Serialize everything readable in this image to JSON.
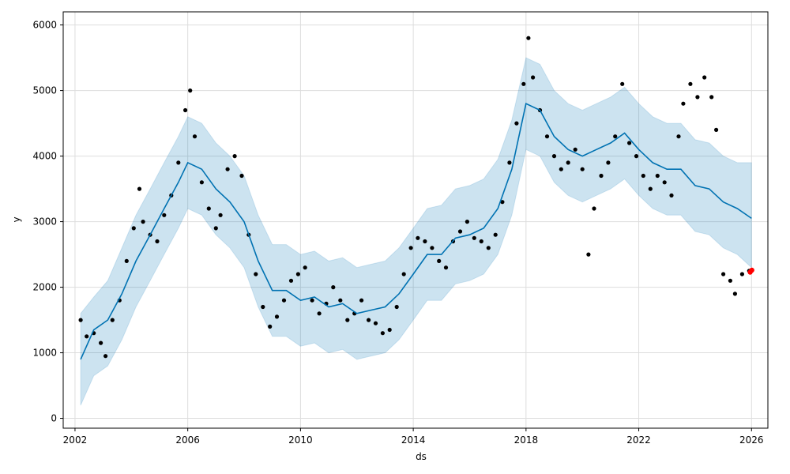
{
  "chart_data": {
    "type": "scatter",
    "title": "",
    "xlabel": "ds",
    "ylabel": "y",
    "xlim": [
      "2001-08-01",
      "2026-08-01"
    ],
    "ylim": [
      -150,
      6200
    ],
    "x_ticks": [
      "2002",
      "2006",
      "2010",
      "2014",
      "2018",
      "2022",
      "2026"
    ],
    "y_ticks": [
      "0",
      "1000",
      "2000",
      "3000",
      "4000",
      "5000",
      "6000"
    ],
    "grid": true,
    "colors": {
      "observed": "#000000",
      "forecast_line": "#0072B2",
      "uncertainty_band": "#0072B2",
      "highlight": "#ff0000"
    },
    "series": [
      {
        "kind": "observed",
        "points": [
          [
            "2002-03-15",
            1500
          ],
          [
            "2002-06-01",
            1250
          ],
          [
            "2002-09-01",
            1300
          ],
          [
            "2002-12-01",
            1150
          ],
          [
            "2003-02-01",
            950
          ],
          [
            "2003-05-01",
            1500
          ],
          [
            "2003-08-01",
            1800
          ],
          [
            "2003-11-01",
            2400
          ],
          [
            "2004-02-01",
            2900
          ],
          [
            "2004-04-15",
            3500
          ],
          [
            "2004-06-01",
            3000
          ],
          [
            "2004-09-01",
            2800
          ],
          [
            "2004-12-01",
            2700
          ],
          [
            "2005-03-01",
            3100
          ],
          [
            "2005-06-01",
            3400
          ],
          [
            "2005-09-01",
            3900
          ],
          [
            "2005-12-01",
            4700
          ],
          [
            "2006-02-01",
            5000
          ],
          [
            "2006-04-01",
            4300
          ],
          [
            "2006-07-01",
            3600
          ],
          [
            "2006-10-01",
            3200
          ],
          [
            "2007-01-01",
            2900
          ],
          [
            "2007-03-01",
            3100
          ],
          [
            "2007-06-01",
            3800
          ],
          [
            "2007-09-01",
            4000
          ],
          [
            "2007-12-01",
            3700
          ],
          [
            "2008-03-01",
            2800
          ],
          [
            "2008-06-01",
            2200
          ],
          [
            "2008-09-01",
            1700
          ],
          [
            "2008-12-01",
            1400
          ],
          [
            "2009-03-01",
            1550
          ],
          [
            "2009-06-01",
            1800
          ],
          [
            "2009-09-01",
            2100
          ],
          [
            "2009-12-01",
            2200
          ],
          [
            "2010-03-01",
            2300
          ],
          [
            "2010-06-01",
            1800
          ],
          [
            "2010-09-01",
            1600
          ],
          [
            "2010-12-01",
            1750
          ],
          [
            "2011-03-01",
            2000
          ],
          [
            "2011-06-01",
            1800
          ],
          [
            "2011-09-01",
            1500
          ],
          [
            "2011-12-01",
            1600
          ],
          [
            "2012-03-01",
            1800
          ],
          [
            "2012-06-01",
            1500
          ],
          [
            "2012-09-01",
            1450
          ],
          [
            "2012-12-01",
            1300
          ],
          [
            "2013-03-01",
            1350
          ],
          [
            "2013-06-01",
            1700
          ],
          [
            "2013-09-01",
            2200
          ],
          [
            "2013-12-01",
            2600
          ],
          [
            "2014-03-01",
            2750
          ],
          [
            "2014-06-01",
            2700
          ],
          [
            "2014-09-01",
            2600
          ],
          [
            "2014-12-01",
            2400
          ],
          [
            "2015-03-01",
            2300
          ],
          [
            "2015-06-01",
            2700
          ],
          [
            "2015-09-01",
            2850
          ],
          [
            "2015-12-01",
            3000
          ],
          [
            "2016-03-01",
            2750
          ],
          [
            "2016-06-01",
            2700
          ],
          [
            "2016-09-01",
            2600
          ],
          [
            "2016-12-01",
            2800
          ],
          [
            "2017-03-01",
            3300
          ],
          [
            "2017-06-01",
            3900
          ],
          [
            "2017-09-01",
            4500
          ],
          [
            "2017-12-01",
            5100
          ],
          [
            "2018-02-01",
            5800
          ],
          [
            "2018-04-01",
            5200
          ],
          [
            "2018-07-01",
            4700
          ],
          [
            "2018-10-01",
            4300
          ],
          [
            "2019-01-01",
            4000
          ],
          [
            "2019-04-01",
            3800
          ],
          [
            "2019-07-01",
            3900
          ],
          [
            "2019-10-01",
            4100
          ],
          [
            "2020-01-01",
            3800
          ],
          [
            "2020-03-20",
            2500
          ],
          [
            "2020-06-01",
            3200
          ],
          [
            "2020-09-01",
            3700
          ],
          [
            "2020-12-01",
            3900
          ],
          [
            "2021-03-01",
            4300
          ],
          [
            "2021-06-01",
            5100
          ],
          [
            "2021-09-01",
            4200
          ],
          [
            "2021-12-01",
            4000
          ],
          [
            "2022-03-01",
            3700
          ],
          [
            "2022-06-01",
            3500
          ],
          [
            "2022-09-01",
            3700
          ],
          [
            "2022-12-01",
            3600
          ],
          [
            "2023-03-01",
            3400
          ],
          [
            "2023-06-01",
            4300
          ],
          [
            "2023-08-01",
            4800
          ],
          [
            "2023-11-01",
            5100
          ],
          [
            "2024-02-01",
            4900
          ],
          [
            "2024-05-01",
            5200
          ],
          [
            "2024-08-01",
            4900
          ],
          [
            "2024-10-01",
            4400
          ],
          [
            "2025-01-01",
            2200
          ],
          [
            "2025-04-01",
            2100
          ],
          [
            "2025-06-01",
            1900
          ],
          [
            "2025-09-01",
            2200
          ],
          [
            "2025-12-01",
            2250
          ]
        ]
      },
      {
        "kind": "forecast",
        "points": [
          [
            "2002-03-15",
            900
          ],
          [
            "2002-09-01",
            1350
          ],
          [
            "2003-03-01",
            1500
          ],
          [
            "2003-09-01",
            1900
          ],
          [
            "2004-03-01",
            2400
          ],
          [
            "2004-09-01",
            2800
          ],
          [
            "2005-03-01",
            3200
          ],
          [
            "2005-09-01",
            3600
          ],
          [
            "2006-01-01",
            3900
          ],
          [
            "2006-07-01",
            3800
          ],
          [
            "2007-01-01",
            3500
          ],
          [
            "2007-07-01",
            3300
          ],
          [
            "2008-01-01",
            3000
          ],
          [
            "2008-07-01",
            2400
          ],
          [
            "2009-01-01",
            1950
          ],
          [
            "2009-07-01",
            1950
          ],
          [
            "2010-01-01",
            1800
          ],
          [
            "2010-07-01",
            1850
          ],
          [
            "2011-01-01",
            1700
          ],
          [
            "2011-07-01",
            1750
          ],
          [
            "2012-01-01",
            1600
          ],
          [
            "2012-07-01",
            1650
          ],
          [
            "2013-01-01",
            1700
          ],
          [
            "2013-07-01",
            1900
          ],
          [
            "2014-01-01",
            2200
          ],
          [
            "2014-07-01",
            2500
          ],
          [
            "2015-01-01",
            2500
          ],
          [
            "2015-07-01",
            2750
          ],
          [
            "2016-01-01",
            2800
          ],
          [
            "2016-07-01",
            2900
          ],
          [
            "2017-01-01",
            3200
          ],
          [
            "2017-07-01",
            3800
          ],
          [
            "2018-01-01",
            4800
          ],
          [
            "2018-07-01",
            4700
          ],
          [
            "2019-01-01",
            4300
          ],
          [
            "2019-07-01",
            4100
          ],
          [
            "2020-01-01",
            4000
          ],
          [
            "2020-07-01",
            4100
          ],
          [
            "2021-01-01",
            4200
          ],
          [
            "2021-07-01",
            4350
          ],
          [
            "2022-01-01",
            4100
          ],
          [
            "2022-07-01",
            3900
          ],
          [
            "2023-01-01",
            3800
          ],
          [
            "2023-07-01",
            3800
          ],
          [
            "2024-01-01",
            3550
          ],
          [
            "2024-07-01",
            3500
          ],
          [
            "2025-01-01",
            3300
          ],
          [
            "2025-07-01",
            3200
          ],
          [
            "2026-01-01",
            3050
          ]
        ]
      },
      {
        "kind": "forecast_upper",
        "points": [
          [
            "2002-03-15",
            1600
          ],
          [
            "2002-09-01",
            1850
          ],
          [
            "2003-03-01",
            2100
          ],
          [
            "2003-09-01",
            2600
          ],
          [
            "2004-03-01",
            3100
          ],
          [
            "2004-09-01",
            3500
          ],
          [
            "2005-03-01",
            3900
          ],
          [
            "2005-09-01",
            4300
          ],
          [
            "2006-01-01",
            4600
          ],
          [
            "2006-07-01",
            4500
          ],
          [
            "2007-01-01",
            4200
          ],
          [
            "2007-07-01",
            4000
          ],
          [
            "2008-01-01",
            3700
          ],
          [
            "2008-07-01",
            3100
          ],
          [
            "2009-01-01",
            2650
          ],
          [
            "2009-07-01",
            2650
          ],
          [
            "2010-01-01",
            2500
          ],
          [
            "2010-07-01",
            2550
          ],
          [
            "2011-01-01",
            2400
          ],
          [
            "2011-07-01",
            2450
          ],
          [
            "2012-01-01",
            2300
          ],
          [
            "2012-07-01",
            2350
          ],
          [
            "2013-01-01",
            2400
          ],
          [
            "2013-07-01",
            2600
          ],
          [
            "2014-01-01",
            2900
          ],
          [
            "2014-07-01",
            3200
          ],
          [
            "2015-01-01",
            3250
          ],
          [
            "2015-07-01",
            3500
          ],
          [
            "2016-01-01",
            3550
          ],
          [
            "2016-07-01",
            3650
          ],
          [
            "2017-01-01",
            3950
          ],
          [
            "2017-07-01",
            4550
          ],
          [
            "2018-01-01",
            5500
          ],
          [
            "2018-07-01",
            5400
          ],
          [
            "2019-01-01",
            5000
          ],
          [
            "2019-07-01",
            4800
          ],
          [
            "2020-01-01",
            4700
          ],
          [
            "2020-07-01",
            4800
          ],
          [
            "2021-01-01",
            4900
          ],
          [
            "2021-07-01",
            5050
          ],
          [
            "2022-01-01",
            4800
          ],
          [
            "2022-07-01",
            4600
          ],
          [
            "2023-01-01",
            4500
          ],
          [
            "2023-07-01",
            4500
          ],
          [
            "2024-01-01",
            4250
          ],
          [
            "2024-07-01",
            4200
          ],
          [
            "2025-01-01",
            4000
          ],
          [
            "2025-07-01",
            3900
          ],
          [
            "2026-01-01",
            3900
          ]
        ]
      },
      {
        "kind": "forecast_lower",
        "points": [
          [
            "2002-03-15",
            200
          ],
          [
            "2002-09-01",
            650
          ],
          [
            "2003-03-01",
            800
          ],
          [
            "2003-09-01",
            1200
          ],
          [
            "2004-03-01",
            1700
          ],
          [
            "2004-09-01",
            2100
          ],
          [
            "2005-03-01",
            2500
          ],
          [
            "2005-09-01",
            2900
          ],
          [
            "2006-01-01",
            3200
          ],
          [
            "2006-07-01",
            3100
          ],
          [
            "2007-01-01",
            2800
          ],
          [
            "2007-07-01",
            2600
          ],
          [
            "2008-01-01",
            2300
          ],
          [
            "2008-07-01",
            1700
          ],
          [
            "2009-01-01",
            1250
          ],
          [
            "2009-07-01",
            1250
          ],
          [
            "2010-01-01",
            1100
          ],
          [
            "2010-07-01",
            1150
          ],
          [
            "2011-01-01",
            1000
          ],
          [
            "2011-07-01",
            1050
          ],
          [
            "2012-01-01",
            900
          ],
          [
            "2012-07-01",
            950
          ],
          [
            "2013-01-01",
            1000
          ],
          [
            "2013-07-01",
            1200
          ],
          [
            "2014-01-01",
            1500
          ],
          [
            "2014-07-01",
            1800
          ],
          [
            "2015-01-01",
            1800
          ],
          [
            "2015-07-01",
            2050
          ],
          [
            "2016-01-01",
            2100
          ],
          [
            "2016-07-01",
            2200
          ],
          [
            "2017-01-01",
            2500
          ],
          [
            "2017-07-01",
            3100
          ],
          [
            "2018-01-01",
            4100
          ],
          [
            "2018-07-01",
            4000
          ],
          [
            "2019-01-01",
            3600
          ],
          [
            "2019-07-01",
            3400
          ],
          [
            "2020-01-01",
            3300
          ],
          [
            "2020-07-01",
            3400
          ],
          [
            "2021-01-01",
            3500
          ],
          [
            "2021-07-01",
            3650
          ],
          [
            "2022-01-01",
            3400
          ],
          [
            "2022-07-01",
            3200
          ],
          [
            "2023-01-01",
            3100
          ],
          [
            "2023-07-01",
            3100
          ],
          [
            "2024-01-01",
            2850
          ],
          [
            "2024-07-01",
            2800
          ],
          [
            "2025-01-01",
            2600
          ],
          [
            "2025-07-01",
            2500
          ],
          [
            "2026-01-01",
            2300
          ]
        ]
      },
      {
        "kind": "highlight",
        "points": [
          [
            "2025-12-15",
            2230
          ],
          [
            "2026-01-05",
            2260
          ]
        ]
      }
    ]
  }
}
